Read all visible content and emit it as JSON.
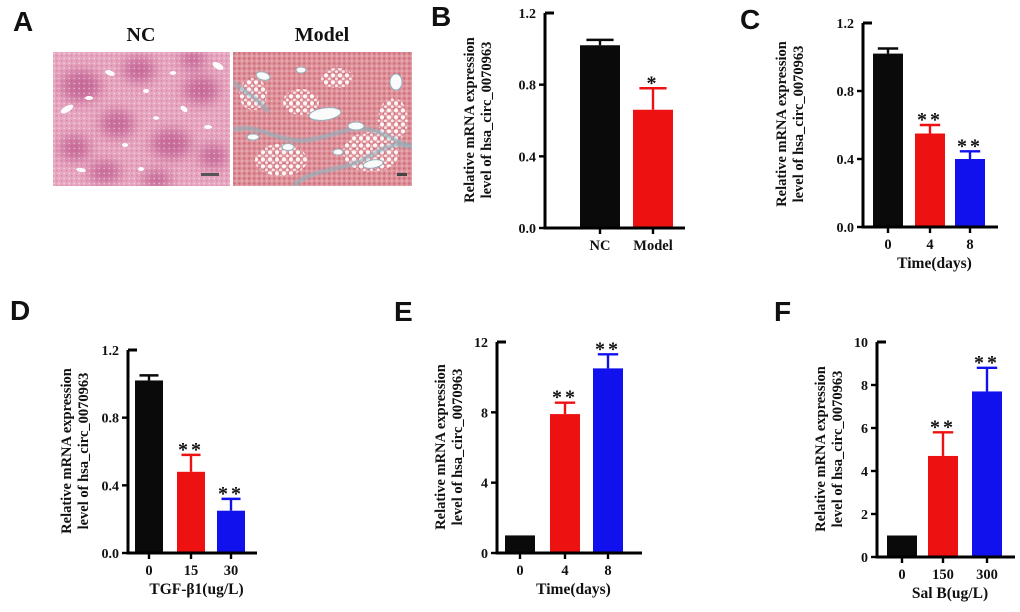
{
  "panels": [
    {
      "label": "A"
    },
    {
      "label": "B"
    },
    {
      "label": "C"
    },
    {
      "label": "D"
    },
    {
      "label": "E"
    },
    {
      "label": "F"
    }
  ],
  "histology": {
    "images": [
      {
        "title": "NC"
      },
      {
        "title": "Model"
      }
    ]
  },
  "colors": {
    "bar_black": "#0a0a0a",
    "bar_red": "#ee1111",
    "bar_blue": "#1111ee",
    "axis": "#000000"
  },
  "chart_data": [
    {
      "id": "B",
      "type": "bar",
      "ylabel_line1": "Relative mRNA expression",
      "ylabel_line2": "level of hsa_circ_0070963",
      "xlabel": "",
      "categories": [
        "NC",
        "Model"
      ],
      "values": [
        1.02,
        0.66
      ],
      "errors": [
        0.03,
        0.12
      ],
      "bar_colors": [
        "#0a0a0a",
        "#ee1111"
      ],
      "significance": [
        "",
        "*"
      ],
      "ylim": [
        0,
        1.2
      ],
      "ytick_values": [
        0,
        0.4,
        0.8,
        1.2
      ],
      "yticks": [
        "0.0",
        "0.4",
        "0.8",
        "1.2"
      ],
      "grid": false,
      "legend": "none"
    },
    {
      "id": "C",
      "type": "bar",
      "ylabel_line1": "Relative mRNA expression",
      "ylabel_line2": "level of hsa_circ_0070963",
      "xlabel": "Time(days)",
      "categories": [
        "0",
        "4",
        "8"
      ],
      "values": [
        1.02,
        0.55,
        0.4
      ],
      "errors": [
        0.03,
        0.05,
        0.045
      ],
      "bar_colors": [
        "#0a0a0a",
        "#ee1111",
        "#1111ee"
      ],
      "significance": [
        "",
        "**",
        "**"
      ],
      "ylim": [
        0,
        1.2
      ],
      "ytick_values": [
        0,
        0.4,
        0.8,
        1.2
      ],
      "yticks": [
        "0.0",
        "0.4",
        "0.8",
        "1.2"
      ],
      "grid": false,
      "legend": "none"
    },
    {
      "id": "D",
      "type": "bar",
      "ylabel_line1": "Relative mRNA expression",
      "ylabel_line2": "level of hsa_circ_0070963",
      "xlabel": "TGF-β1(ug/L)",
      "categories": [
        "0",
        "15",
        "30"
      ],
      "values": [
        1.02,
        0.48,
        0.25
      ],
      "errors": [
        0.03,
        0.1,
        0.07
      ],
      "bar_colors": [
        "#0a0a0a",
        "#ee1111",
        "#1111ee"
      ],
      "significance": [
        "",
        "**",
        "**"
      ],
      "ylim": [
        0,
        1.2
      ],
      "ytick_values": [
        0,
        0.4,
        0.8,
        1.2
      ],
      "yticks": [
        "0.0",
        "0.4",
        "0.8",
        "1.2"
      ],
      "grid": false,
      "legend": "none"
    },
    {
      "id": "E",
      "type": "bar",
      "ylabel_line1": "Relative mRNA expression",
      "ylabel_line2": "level of hsa_circ_0070963",
      "xlabel": "Time(days)",
      "categories": [
        "0",
        "4",
        "8"
      ],
      "values": [
        1.0,
        7.9,
        10.5
      ],
      "errors": [
        0,
        0.65,
        0.8
      ],
      "bar_colors": [
        "#0a0a0a",
        "#ee1111",
        "#1111ee"
      ],
      "significance": [
        "",
        "**",
        "**"
      ],
      "ylim": [
        0,
        12
      ],
      "ytick_values": [
        0,
        4,
        8,
        12
      ],
      "yticks": [
        "0",
        "4",
        "8",
        "12"
      ],
      "grid": false,
      "legend": "none"
    },
    {
      "id": "F",
      "type": "bar",
      "ylabel_line1": "Relative mRNA expression",
      "ylabel_line2": "level of hsa_circ_0070963",
      "xlabel": "Sal B(ug/L)",
      "categories": [
        "0",
        "150",
        "300"
      ],
      "values": [
        1.0,
        4.7,
        7.7
      ],
      "errors": [
        0,
        1.1,
        1.1
      ],
      "bar_colors": [
        "#0a0a0a",
        "#ee1111",
        "#1111ee"
      ],
      "significance": [
        "",
        "**",
        "**"
      ],
      "ylim": [
        0,
        10
      ],
      "ytick_values": [
        0,
        2,
        4,
        6,
        8,
        10
      ],
      "yticks": [
        "0",
        "2",
        "4",
        "6",
        "8",
        "10"
      ],
      "grid": false,
      "legend": "none"
    }
  ]
}
